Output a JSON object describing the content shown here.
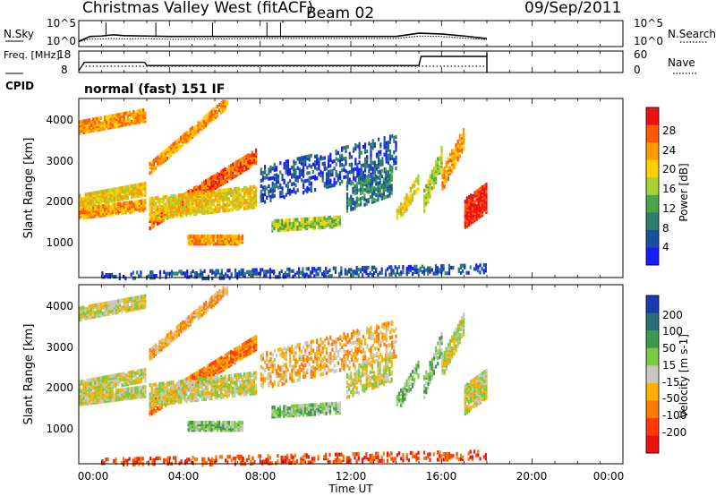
{
  "header": {
    "title": "Christmas Valley West (fitACF)",
    "beam": "Beam 02",
    "date": "09/Sep/2011"
  },
  "chart_data": [
    {
      "type": "line",
      "panel": "noise",
      "left_label": "N.Sky",
      "left_ticks": [
        "10^5",
        "10^0"
      ],
      "right_label": "N.Search",
      "right_ticks": [
        "10^5",
        "10^0"
      ],
      "x": [
        0,
        0.5,
        1,
        1.5,
        2,
        3,
        4,
        6,
        8,
        10,
        12,
        14,
        15,
        16,
        17,
        18
      ],
      "series": [
        {
          "values": [
            0.6,
            1.8,
            1.9,
            2.2,
            2.0,
            1.9,
            1.8,
            1.8,
            1.8,
            1.8,
            1.8,
            1.8,
            2.6,
            2.4,
            1.9,
            1.3
          ]
        },
        {
          "values": [
            0.5,
            1.2,
            1.2,
            1.3,
            1.2,
            1.3,
            1.1,
            1.2,
            1.3,
            1.3,
            1.3,
            1.3,
            1.9,
            1.8,
            1.4,
            1.0
          ]
        }
      ]
    },
    {
      "type": "line",
      "panel": "frequency",
      "left_label": "Freq. [MHz]",
      "left_ticks": [
        "18",
        "8"
      ],
      "right_label": "Nave",
      "right_ticks": [
        "60",
        "0"
      ],
      "x": [
        0,
        0.25,
        2.9,
        3.0,
        15.0,
        15.1,
        18.0
      ],
      "series": [
        {
          "values": [
            8,
            12.7,
            12.7,
            10.9,
            10.9,
            16.0,
            16.0
          ]
        }
      ]
    },
    {
      "type": "heatmap",
      "panel": "power",
      "cpid": "CPID",
      "mode": "normal (fast) 151 IF",
      "ylabel": "Slant Range [km]",
      "yticks": [
        1000,
        2000,
        3000,
        4000
      ],
      "ylim": [
        180,
        4550
      ],
      "xlim": [
        0,
        24
      ],
      "colorbar_label": "Power [dB]",
      "colorbar_ticks": [
        "4",
        "8",
        "12",
        "16",
        "20",
        "24",
        "28"
      ],
      "colors": [
        "#1a1aff",
        "#1a4fa0",
        "#2f7d6e",
        "#48a848",
        "#a8d030",
        "#ffd000",
        "#ff9a00",
        "#ff5a00",
        "#ee1111"
      ]
    },
    {
      "type": "heatmap",
      "panel": "velocity",
      "ylabel": "Slant Range [km]",
      "yticks": [
        1000,
        2000,
        3000,
        4000
      ],
      "ylim": [
        180,
        4550
      ],
      "xlim": [
        0,
        24
      ],
      "xticks": [
        "00:00",
        "04:00",
        "08:00",
        "12:00",
        "16:00",
        "20:00",
        "00:00"
      ],
      "xlabel": "Time UT",
      "colorbar_label": "Velocity [m s-1]",
      "colorbar_ticks": [
        "200",
        "100",
        "50",
        "15",
        "-15",
        "-50",
        "-100",
        "-200"
      ],
      "colors": [
        "#1a3ab0",
        "#2a6e7a",
        "#3a9a4a",
        "#78cc40",
        "#c8c8c0",
        "#ffb000",
        "#ff7a00",
        "#ff3a00",
        "#ee1111"
      ]
    }
  ]
}
